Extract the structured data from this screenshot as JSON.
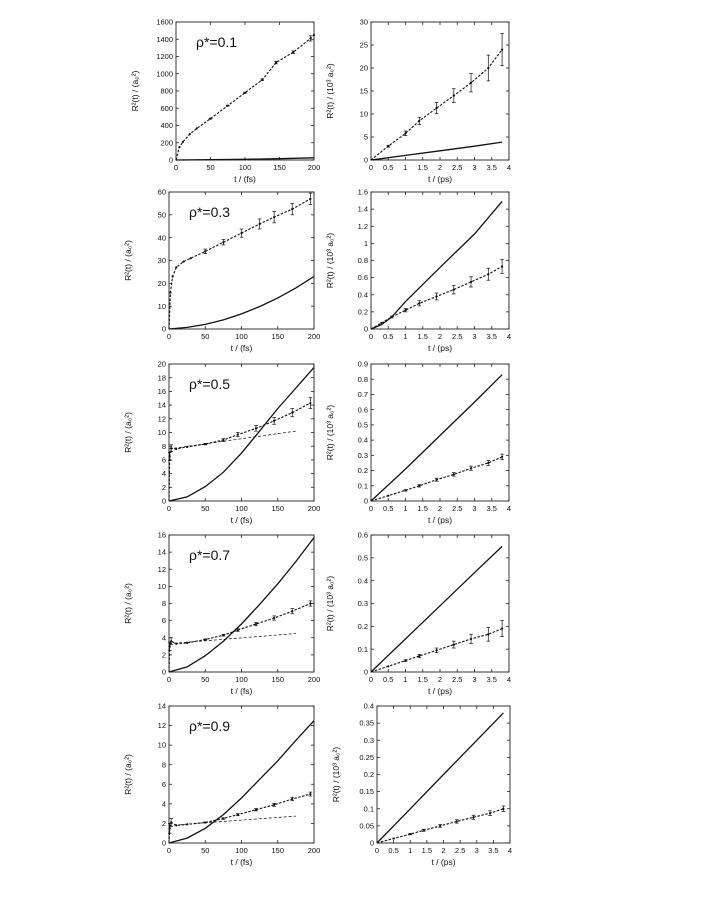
{
  "chart_data": [
    {
      "type": "line",
      "annotation": "ρ*=0.1",
      "xlabel": "t / (fs)",
      "ylabel": "R²(t) / (a₀²)",
      "xlim": [
        0,
        200
      ],
      "ylim": [
        0,
        1600
      ],
      "xticks": [
        0,
        50,
        100,
        150,
        200
      ],
      "yticks": [
        0,
        200,
        400,
        600,
        800,
        1000,
        1200,
        1400,
        1600
      ],
      "series": [
        {
          "style": "solid",
          "x": [
            0,
            50,
            100,
            150,
            200
          ],
          "y": [
            0,
            3,
            8,
            15,
            25
          ]
        },
        {
          "style": "dashed-markers",
          "x": [
            0,
            5,
            10,
            20,
            30,
            50,
            75,
            100,
            125,
            145,
            170,
            195,
            200
          ],
          "y": [
            0,
            150,
            210,
            300,
            365,
            480,
            630,
            780,
            930,
            1130,
            1250,
            1410,
            1450
          ],
          "err": [
            0,
            0,
            0,
            0,
            0,
            5,
            5,
            5,
            10,
            15,
            15,
            30,
            0
          ]
        }
      ]
    },
    {
      "type": "line",
      "annotation": "",
      "xlabel": "t / (ps)",
      "ylabel": "R²(t) / (10³ a₀²)",
      "xlim": [
        0,
        4
      ],
      "ylim": [
        0,
        30
      ],
      "xticks": [
        0,
        0.5,
        1,
        1.5,
        2,
        2.5,
        3,
        3.5,
        4
      ],
      "yticks": [
        0,
        5,
        10,
        15,
        20,
        25,
        30
      ],
      "series": [
        {
          "style": "solid",
          "x": [
            0,
            1,
            2,
            3,
            3.8
          ],
          "y": [
            0,
            1.0,
            2.0,
            3.0,
            3.9
          ]
        },
        {
          "style": "dashed-markers",
          "x": [
            0,
            0.5,
            1,
            1.4,
            1.9,
            2.4,
            2.9,
            3.4,
            3.8
          ],
          "y": [
            0,
            3.0,
            5.8,
            8.5,
            11.3,
            14.0,
            16.8,
            20.0,
            24.0
          ],
          "err": [
            0,
            0.2,
            0.5,
            0.8,
            1.2,
            1.5,
            2.0,
            2.8,
            3.5
          ]
        }
      ]
    },
    {
      "type": "line",
      "annotation": "ρ*=0.3",
      "xlabel": "t / (fs)",
      "ylabel": "R²(t) / (a₀²)",
      "xlim": [
        0,
        200
      ],
      "ylim": [
        0,
        60
      ],
      "xticks": [
        0,
        50,
        100,
        150,
        200
      ],
      "yticks": [
        0,
        10,
        20,
        30,
        40,
        50,
        60
      ],
      "series": [
        {
          "style": "solid",
          "x": [
            0,
            25,
            50,
            75,
            100,
            125,
            150,
            175,
            200
          ],
          "y": [
            0,
            0.7,
            2.0,
            4.0,
            6.6,
            9.8,
            13.6,
            18.0,
            23.0
          ]
        },
        {
          "style": "dashed-markers",
          "x": [
            0,
            2,
            5,
            10,
            20,
            30,
            50,
            75,
            100,
            125,
            145,
            170,
            195
          ],
          "y": [
            0,
            16,
            23,
            27,
            29.5,
            31,
            34,
            38,
            42,
            46,
            49,
            52.5,
            57
          ],
          "err": [
            0,
            0,
            0,
            0,
            0,
            0,
            1,
            1.2,
            1.8,
            2.2,
            2.5,
            2.5,
            2.5
          ]
        }
      ]
    },
    {
      "type": "line",
      "annotation": "",
      "xlabel": "t / (ps)",
      "ylabel": "R²(t) / (10³ a₀²)",
      "xlim": [
        0,
        4
      ],
      "ylim": [
        0,
        1.6
      ],
      "xticks": [
        0,
        0.5,
        1,
        1.5,
        2,
        2.5,
        3,
        3.5,
        4
      ],
      "yticks": [
        0,
        0.2,
        0.4,
        0.6,
        0.8,
        1,
        1.2,
        1.4,
        1.6
      ],
      "series": [
        {
          "style": "solid",
          "x": [
            0,
            0.3,
            0.6,
            1,
            2,
            3,
            3.8
          ],
          "y": [
            0,
            0.05,
            0.14,
            0.32,
            0.72,
            1.11,
            1.49
          ]
        },
        {
          "style": "dashed-markers",
          "x": [
            0,
            0.3,
            0.6,
            1,
            1.4,
            1.9,
            2.4,
            2.9,
            3.4,
            3.8
          ],
          "y": [
            0,
            0.07,
            0.14,
            0.22,
            0.3,
            0.38,
            0.46,
            0.55,
            0.64,
            0.73
          ],
          "err": [
            0,
            0,
            0.01,
            0.02,
            0.03,
            0.04,
            0.05,
            0.06,
            0.07,
            0.08
          ]
        }
      ]
    },
    {
      "type": "line",
      "annotation": "ρ*=0.5",
      "xlabel": "t / (fs)",
      "ylabel": "R²(t) / (a₀²)",
      "xlim": [
        0,
        200
      ],
      "ylim": [
        0,
        20
      ],
      "xticks": [
        0,
        50,
        100,
        150,
        200
      ],
      "yticks": [
        0,
        2,
        4,
        6,
        8,
        10,
        12,
        14,
        16,
        18,
        20
      ],
      "series": [
        {
          "style": "solid",
          "x": [
            0,
            25,
            50,
            75,
            100,
            125,
            150,
            175,
            200
          ],
          "y": [
            0,
            0.6,
            2.1,
            4.2,
            7.0,
            10.2,
            13.5,
            16.5,
            19.5
          ]
        },
        {
          "style": "dashed-markers",
          "x": [
            0,
            1,
            3,
            10,
            25,
            50,
            75,
            95,
            120,
            145,
            170,
            195
          ],
          "y": [
            0,
            6.5,
            7.7,
            7.6,
            7.9,
            8.3,
            8.9,
            9.7,
            10.6,
            11.7,
            12.9,
            14.3
          ],
          "err": [
            0,
            0.6,
            0.5,
            0,
            0,
            0.1,
            0.2,
            0.3,
            0.4,
            0.5,
            0.6,
            0.8
          ]
        },
        {
          "style": "thin-dashed",
          "x": [
            0,
            175
          ],
          "y": [
            7.6,
            10.2
          ]
        }
      ]
    },
    {
      "type": "line",
      "annotation": "",
      "xlabel": "t / (ps)",
      "ylabel": "R²(t) / (10³ a₀²)",
      "xlim": [
        0,
        4
      ],
      "ylim": [
        0,
        0.9
      ],
      "xticks": [
        0,
        0.5,
        1,
        1.5,
        2,
        2.5,
        3,
        3.5,
        4
      ],
      "yticks": [
        0,
        0.1,
        0.2,
        0.3,
        0.4,
        0.5,
        0.6,
        0.7,
        0.8,
        0.9
      ],
      "series": [
        {
          "style": "solid",
          "x": [
            0,
            1,
            2,
            3,
            3.8
          ],
          "y": [
            0,
            0.21,
            0.43,
            0.65,
            0.83
          ]
        },
        {
          "style": "dashed-markers",
          "x": [
            0,
            0.5,
            1,
            1.4,
            1.9,
            2.4,
            2.9,
            3.4,
            3.8
          ],
          "y": [
            0,
            0.035,
            0.07,
            0.1,
            0.14,
            0.175,
            0.215,
            0.25,
            0.29
          ],
          "err": [
            0,
            0,
            0.005,
            0.008,
            0.01,
            0.012,
            0.014,
            0.016,
            0.018
          ]
        }
      ]
    },
    {
      "type": "line",
      "annotation": "ρ*=0.7",
      "xlabel": "t / (fs)",
      "ylabel": "R²(t) / (a₀²)",
      "xlim": [
        0,
        200
      ],
      "ylim": [
        0,
        16
      ],
      "xticks": [
        0,
        50,
        100,
        150,
        200
      ],
      "yticks": [
        0,
        2,
        4,
        6,
        8,
        10,
        12,
        14,
        16
      ],
      "series": [
        {
          "style": "solid",
          "x": [
            0,
            25,
            50,
            75,
            100,
            125,
            150,
            175,
            200
          ],
          "y": [
            0,
            0.6,
            1.9,
            3.6,
            5.6,
            7.9,
            10.3,
            12.9,
            15.7
          ]
        },
        {
          "style": "dashed-markers",
          "x": [
            0,
            1,
            3,
            10,
            25,
            50,
            75,
            95,
            120,
            145,
            170,
            195
          ],
          "y": [
            0,
            3.0,
            3.6,
            3.3,
            3.4,
            3.8,
            4.3,
            4.9,
            5.6,
            6.3,
            7.1,
            8.0
          ],
          "err": [
            0,
            0.5,
            0.4,
            0,
            0,
            0.05,
            0.1,
            0.15,
            0.2,
            0.25,
            0.3,
            0.3
          ]
        },
        {
          "style": "thin-dashed",
          "x": [
            0,
            175
          ],
          "y": [
            3.3,
            4.5
          ]
        }
      ]
    },
    {
      "type": "line",
      "annotation": "",
      "xlabel": "t / (ps)",
      "ylabel": "R²(t) / (10³ a₀²)",
      "xlim": [
        0,
        4
      ],
      "ylim": [
        0,
        0.6
      ],
      "xticks": [
        0,
        0.5,
        1,
        1.5,
        2,
        2.5,
        3,
        3.5,
        4
      ],
      "yticks": [
        0,
        0.1,
        0.2,
        0.3,
        0.4,
        0.5,
        0.6
      ],
      "series": [
        {
          "style": "solid",
          "x": [
            0,
            1,
            2,
            3,
            3.8
          ],
          "y": [
            0,
            0.145,
            0.29,
            0.435,
            0.55
          ]
        },
        {
          "style": "dashed-markers",
          "x": [
            0,
            0.5,
            1,
            1.4,
            1.9,
            2.4,
            2.9,
            3.4,
            3.8
          ],
          "y": [
            0,
            0.025,
            0.05,
            0.07,
            0.095,
            0.12,
            0.145,
            0.165,
            0.19
          ],
          "err": [
            0,
            0,
            0.004,
            0.007,
            0.01,
            0.015,
            0.02,
            0.03,
            0.035
          ]
        }
      ]
    },
    {
      "type": "line",
      "annotation": "ρ*=0.9",
      "xlabel": "t / (fs)",
      "ylabel": "R²(t) / (a₀²)",
      "xlim": [
        0,
        200
      ],
      "ylim": [
        0,
        14
      ],
      "xticks": [
        0,
        50,
        100,
        150,
        200
      ],
      "yticks": [
        0,
        2,
        4,
        6,
        8,
        10,
        12,
        14
      ],
      "series": [
        {
          "style": "solid",
          "x": [
            0,
            25,
            50,
            75,
            100,
            125,
            150,
            175,
            200
          ],
          "y": [
            0,
            0.5,
            1.5,
            2.9,
            4.6,
            6.5,
            8.4,
            10.5,
            12.5
          ]
        },
        {
          "style": "dashed-markers",
          "x": [
            0,
            1,
            3,
            10,
            25,
            50,
            75,
            95,
            120,
            145,
            170,
            195
          ],
          "y": [
            0,
            1.5,
            2.1,
            1.8,
            1.9,
            2.1,
            2.5,
            2.9,
            3.4,
            3.9,
            4.5,
            5.0
          ],
          "err": [
            0,
            0.5,
            0.4,
            0,
            0,
            0.05,
            0.08,
            0.1,
            0.12,
            0.15,
            0.18,
            0.2
          ]
        },
        {
          "style": "thin-dashed",
          "x": [
            0,
            175
          ],
          "y": [
            1.8,
            2.75
          ]
        }
      ]
    },
    {
      "type": "line",
      "annotation": "",
      "xlabel": "t / (ps)",
      "ylabel": "R²(t) / (10³ a₀²)",
      "xlim": [
        0,
        4
      ],
      "ylim": [
        0,
        0.4
      ],
      "xticks": [
        0,
        0.5,
        1,
        1.5,
        2,
        2.5,
        3,
        3.5,
        4
      ],
      "yticks": [
        0,
        0.05,
        0.1,
        0.15,
        0.2,
        0.25,
        0.3,
        0.35,
        0.4
      ],
      "series": [
        {
          "style": "solid",
          "x": [
            0,
            1,
            2,
            3,
            3.8
          ],
          "y": [
            0,
            0.1,
            0.2,
            0.3,
            0.38
          ]
        },
        {
          "style": "dashed-markers",
          "x": [
            0,
            0.5,
            1,
            1.4,
            1.9,
            2.4,
            2.9,
            3.4,
            3.8
          ],
          "y": [
            0,
            0.013,
            0.026,
            0.037,
            0.05,
            0.063,
            0.075,
            0.087,
            0.1
          ],
          "err": [
            0,
            0,
            0.002,
            0.003,
            0.004,
            0.005,
            0.006,
            0.007,
            0.008
          ]
        }
      ]
    }
  ]
}
